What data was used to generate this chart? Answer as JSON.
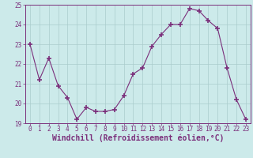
{
  "hours": [
    0,
    1,
    2,
    3,
    4,
    5,
    6,
    7,
    8,
    9,
    10,
    11,
    12,
    13,
    14,
    15,
    16,
    17,
    18,
    19,
    20,
    21,
    22,
    23
  ],
  "values": [
    23.0,
    21.2,
    22.3,
    20.9,
    20.3,
    19.2,
    19.8,
    19.6,
    19.6,
    19.7,
    20.4,
    21.5,
    21.8,
    22.9,
    23.5,
    24.0,
    24.0,
    24.8,
    24.7,
    24.2,
    23.8,
    21.8,
    20.2,
    19.2
  ],
  "line_color": "#7b2f7b",
  "marker": "+",
  "bg_color": "#cceaea",
  "grid_color": "#aacccc",
  "xlabel": "Windchill (Refroidissement éolien,°C)",
  "ylim": [
    19,
    25
  ],
  "xlim": [
    -0.5,
    23.5
  ],
  "yticks": [
    19,
    20,
    21,
    22,
    23,
    24,
    25
  ],
  "xticks": [
    0,
    1,
    2,
    3,
    4,
    5,
    6,
    7,
    8,
    9,
    10,
    11,
    12,
    13,
    14,
    15,
    16,
    17,
    18,
    19,
    20,
    21,
    22,
    23
  ],
  "tick_fontsize": 5.5,
  "xlabel_fontsize": 7.0,
  "tick_color": "#7b2f7b",
  "spine_color": "#7b2f7b",
  "linewidth": 0.8,
  "markersize": 4,
  "markeredgewidth": 1.2
}
